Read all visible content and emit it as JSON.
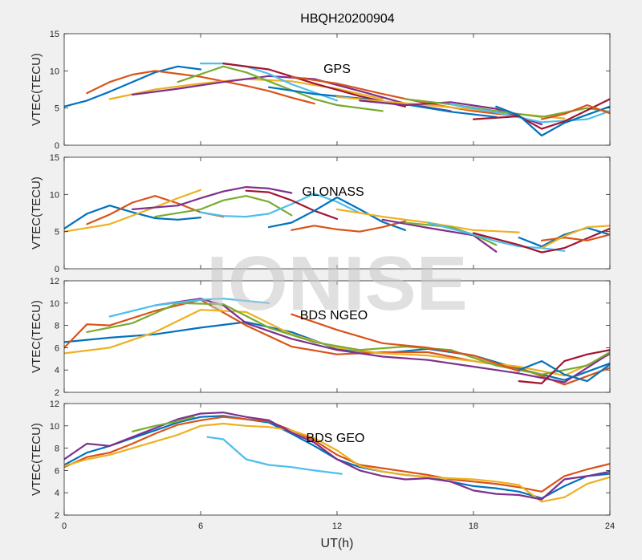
{
  "figure_title": "HBQH20200904",
  "watermark": "IONISE",
  "xlabel": "UT(h)",
  "colors": [
    "#0072BD",
    "#D95319",
    "#EDB120",
    "#7E2F8E",
    "#77AC30",
    "#4DBEEE",
    "#A2142F"
  ],
  "chart_data": [
    {
      "type": "line",
      "title": "GPS",
      "ylabel": "VTEC(TECU)",
      "xlim": [
        0,
        24
      ],
      "ylim": [
        0,
        15
      ],
      "xticks": [
        0,
        6,
        12,
        18,
        24
      ],
      "yticks": [
        0,
        5,
        10,
        15
      ],
      "series": [
        {
          "x": [
            0,
            1,
            2,
            3,
            4,
            5,
            6
          ],
          "y": [
            5.2,
            6.0,
            7.2,
            8.5,
            9.8,
            10.6,
            10.2
          ]
        },
        {
          "x": [
            1,
            2,
            3,
            4,
            5,
            6,
            7,
            8,
            9,
            10,
            11
          ],
          "y": [
            7.0,
            8.5,
            9.5,
            10.0,
            9.6,
            9.2,
            8.6,
            8.0,
            7.3,
            6.4,
            5.6
          ]
        },
        {
          "x": [
            2,
            4,
            6,
            8,
            10,
            12,
            14
          ],
          "y": [
            6.2,
            7.5,
            8.3,
            8.9,
            8.6,
            7.6,
            6.2
          ]
        },
        {
          "x": [
            3,
            5,
            7,
            9,
            11,
            13,
            15,
            17
          ],
          "y": [
            6.8,
            7.6,
            8.5,
            9.3,
            8.9,
            7.3,
            5.6,
            4.6
          ]
        },
        {
          "x": [
            5,
            7,
            8,
            9,
            10,
            11,
            12,
            14
          ],
          "y": [
            8.5,
            10.6,
            9.8,
            8.6,
            7.4,
            6.2,
            5.4,
            4.6
          ]
        },
        {
          "x": [
            6,
            7,
            8,
            9,
            10,
            11,
            12
          ],
          "y": [
            11.0,
            11.0,
            10.6,
            9.6,
            8.2,
            7.1,
            6.0
          ]
        },
        {
          "x": [
            7,
            9,
            11,
            13,
            15
          ],
          "y": [
            11.0,
            10.2,
            8.3,
            6.6,
            5.2
          ]
        },
        {
          "x": [
            9,
            11,
            13,
            15,
            17,
            19
          ],
          "y": [
            7.8,
            6.9,
            6.3,
            5.5,
            4.5,
            3.8
          ]
        },
        {
          "x": [
            10,
            12,
            14,
            16,
            18,
            20
          ],
          "y": [
            9.2,
            8.3,
            6.9,
            5.6,
            4.6,
            3.9
          ]
        },
        {
          "x": [
            12,
            14,
            16,
            18,
            20,
            22
          ],
          "y": [
            6.5,
            5.9,
            5.4,
            4.8,
            4.2,
            3.6
          ]
        },
        {
          "x": [
            13,
            15,
            17,
            19,
            21
          ],
          "y": [
            6.0,
            5.4,
            5.8,
            4.9,
            2.8
          ]
        },
        {
          "x": [
            15,
            17,
            19,
            21,
            23,
            24
          ],
          "y": [
            6.2,
            5.5,
            4.6,
            3.8,
            5.0,
            4.5
          ]
        },
        {
          "x": [
            17,
            19,
            21,
            23,
            24
          ],
          "y": [
            5.5,
            4.4,
            3.1,
            3.5,
            4.6
          ]
        },
        {
          "x": [
            18,
            20,
            21,
            22,
            24
          ],
          "y": [
            3.5,
            3.9,
            2.2,
            3.2,
            6.2
          ]
        },
        {
          "x": [
            19,
            20,
            21,
            22,
            24
          ],
          "y": [
            5.2,
            4.0,
            1.3,
            3.0,
            5.2
          ]
        },
        {
          "x": [
            21,
            22,
            23,
            24
          ],
          "y": [
            3.5,
            4.2,
            5.4,
            4.3
          ]
        }
      ]
    },
    {
      "type": "line",
      "title": "GLONASS",
      "ylabel": "VTEC(TECU)",
      "xlim": [
        0,
        24
      ],
      "ylim": [
        0,
        15
      ],
      "xticks": [
        0,
        6,
        12,
        18,
        24
      ],
      "yticks": [
        0,
        5,
        10,
        15
      ],
      "series": [
        {
          "x": [
            0,
            1,
            2,
            3,
            4,
            5,
            6
          ],
          "y": [
            5.4,
            7.4,
            8.5,
            7.6,
            6.8,
            6.6,
            6.9
          ]
        },
        {
          "x": [
            1,
            2,
            3,
            4,
            5,
            6,
            7
          ],
          "y": [
            6.0,
            7.3,
            8.9,
            9.8,
            8.8,
            7.6,
            7.0
          ]
        },
        {
          "x": [
            0,
            2,
            4,
            5,
            6
          ],
          "y": [
            5.0,
            6.0,
            8.3,
            9.5,
            10.6
          ]
        },
        {
          "x": [
            3,
            5,
            6,
            7,
            8,
            9,
            10
          ],
          "y": [
            8.0,
            8.5,
            9.5,
            10.4,
            11.0,
            10.8,
            10.2
          ]
        },
        {
          "x": [
            4,
            6,
            7,
            8,
            9,
            10
          ],
          "y": [
            7.0,
            8.0,
            9.2,
            9.8,
            9.0,
            7.2
          ]
        },
        {
          "x": [
            6,
            7,
            8,
            9,
            10,
            11,
            12,
            13
          ],
          "y": [
            7.6,
            7.1,
            7.0,
            7.4,
            8.7,
            10.1,
            9.0,
            7.5
          ]
        },
        {
          "x": [
            8,
            9,
            10,
            11,
            12
          ],
          "y": [
            10.5,
            10.3,
            9.2,
            7.8,
            6.7
          ]
        },
        {
          "x": [
            9,
            10,
            11,
            12,
            13,
            14,
            15
          ],
          "y": [
            5.6,
            6.2,
            7.8,
            9.6,
            8.0,
            6.3,
            5.2
          ]
        },
        {
          "x": [
            10,
            11,
            12,
            13,
            14,
            15
          ],
          "y": [
            5.2,
            5.8,
            5.3,
            5.0,
            5.6,
            6.4
          ]
        },
        {
          "x": [
            12,
            14,
            16,
            18,
            20
          ],
          "y": [
            8.0,
            7.0,
            6.2,
            5.2,
            4.9
          ]
        },
        {
          "x": [
            14,
            16,
            18,
            19
          ],
          "y": [
            6.6,
            5.5,
            4.5,
            2.3
          ]
        },
        {
          "x": [
            15,
            17,
            18,
            19
          ],
          "y": [
            6.2,
            5.6,
            4.6,
            3.2
          ]
        },
        {
          "x": [
            16,
            18,
            19,
            20,
            21,
            22
          ],
          "y": [
            6.2,
            4.6,
            3.7,
            3.0,
            2.8,
            2.4
          ]
        },
        {
          "x": [
            18,
            19,
            20,
            21,
            22,
            24
          ],
          "y": [
            4.8,
            4.0,
            3.2,
            2.2,
            2.8,
            5.4
          ]
        },
        {
          "x": [
            20,
            21,
            22,
            23,
            24
          ],
          "y": [
            4.2,
            3.0,
            4.6,
            5.5,
            4.6
          ]
        },
        {
          "x": [
            21,
            22,
            23,
            24
          ],
          "y": [
            3.8,
            4.2,
            3.8,
            4.6
          ]
        },
        {
          "x": [
            21,
            22,
            23,
            24
          ],
          "y": [
            2.8,
            4.4,
            5.6,
            5.8
          ]
        }
      ]
    },
    {
      "type": "line",
      "title": "BDS NGEO",
      "ylabel": "VTEC(TECU)",
      "xlim": [
        0,
        24
      ],
      "ylim": [
        2,
        12
      ],
      "xticks": [
        0,
        6,
        12,
        18,
        24
      ],
      "yticks": [
        2,
        4,
        6,
        8,
        10,
        12
      ],
      "series": [
        {
          "x": [
            0,
            2,
            4,
            6,
            8,
            10,
            12,
            14,
            16,
            18,
            20,
            22,
            24
          ],
          "y": [
            6.5,
            6.9,
            7.2,
            7.8,
            8.3,
            7.4,
            5.9,
            5.5,
            5.9,
            5.3,
            4.1,
            3.1,
            4.6
          ]
        },
        {
          "x": [
            0,
            1,
            2,
            4,
            6,
            8,
            10,
            12,
            14,
            16,
            18,
            20,
            22,
            24
          ],
          "y": [
            6.0,
            8.1,
            8.0,
            9.3,
            10.3,
            8.0,
            6.1,
            5.4,
            5.6,
            5.6,
            4.8,
            4.2,
            2.7,
            4.2
          ]
        },
        {
          "x": [
            0,
            2,
            4,
            6,
            8,
            10,
            12,
            14,
            16,
            18,
            20,
            22,
            24
          ],
          "y": [
            5.5,
            6.0,
            7.4,
            9.4,
            9.2,
            7.2,
            6.0,
            5.5,
            5.3,
            4.8,
            4.3,
            3.5,
            5.4
          ]
        },
        {
          "x": [
            4,
            6,
            7,
            8,
            10,
            12,
            14,
            16,
            18,
            20,
            22,
            24
          ],
          "y": [
            9.8,
            10.4,
            9.8,
            8.2,
            6.8,
            5.8,
            5.2,
            4.9,
            4.3,
            3.7,
            2.9,
            5.5
          ]
        },
        {
          "x": [
            1,
            3,
            5,
            7,
            9,
            11,
            13,
            15,
            17,
            19,
            21,
            23,
            24
          ],
          "y": [
            7.4,
            8.2,
            10.0,
            9.9,
            7.8,
            6.5,
            5.8,
            6.1,
            5.8,
            4.4,
            3.6,
            4.4,
            5.6
          ]
        },
        {
          "x": [
            2,
            4,
            6,
            7,
            8,
            9
          ],
          "y": [
            8.8,
            9.8,
            10.3,
            10.4,
            10.2,
            10.0
          ]
        },
        {
          "x": [
            20,
            21,
            22,
            23,
            24
          ],
          "y": [
            3.0,
            2.8,
            4.8,
            5.4,
            5.8
          ]
        },
        {
          "x": [
            20,
            21,
            22,
            23,
            24
          ],
          "y": [
            4.0,
            4.8,
            3.6,
            3.0,
            4.5
          ]
        },
        {
          "x": [
            10,
            12,
            14,
            16,
            18,
            20
          ],
          "y": [
            9.0,
            7.6,
            6.4,
            6.0,
            5.3,
            3.9
          ]
        }
      ]
    },
    {
      "type": "line",
      "title": "BDS GEO",
      "ylabel": "VTEC(TECU)",
      "xlim": [
        0,
        24
      ],
      "ylim": [
        2,
        12
      ],
      "xticks": [
        0,
        6,
        12,
        18,
        24
      ],
      "yticks": [
        2,
        4,
        6,
        8,
        10,
        12
      ],
      "series": [
        {
          "x": [
            0,
            1,
            2,
            3,
            4,
            5,
            6,
            7,
            8,
            9,
            10,
            11,
            12,
            13,
            14,
            15,
            16,
            17,
            18,
            19,
            20,
            21,
            22,
            23,
            24
          ],
          "y": [
            6.5,
            7.6,
            8.2,
            8.9,
            9.6,
            10.3,
            10.8,
            10.9,
            10.6,
            10.3,
            9.3,
            8.2,
            7.0,
            6.3,
            5.9,
            5.6,
            5.4,
            5.0,
            4.6,
            4.4,
            4.1,
            3.5,
            4.6,
            5.5,
            5.7
          ]
        },
        {
          "x": [
            0,
            1,
            2,
            3,
            4,
            5,
            6,
            7,
            8,
            9,
            10,
            11,
            12,
            13,
            14,
            15,
            16,
            17,
            18,
            19,
            20,
            21,
            22,
            23,
            24
          ],
          "y": [
            6.3,
            7.2,
            7.6,
            8.4,
            9.3,
            10.1,
            10.5,
            10.8,
            10.6,
            10.4,
            9.6,
            8.7,
            7.4,
            6.5,
            6.2,
            5.9,
            5.6,
            5.2,
            5.0,
            4.8,
            4.5,
            4.1,
            5.5,
            6.1,
            6.6
          ]
        },
        {
          "x": [
            0,
            1,
            2,
            3,
            4,
            5,
            6,
            7,
            8,
            9,
            10,
            11,
            12,
            13,
            14,
            15,
            16,
            17,
            18,
            19,
            20,
            21,
            22,
            23,
            24
          ],
          "y": [
            6.4,
            7.0,
            7.4,
            8.0,
            8.6,
            9.2,
            10.0,
            10.2,
            10.0,
            9.9,
            9.6,
            8.9,
            7.8,
            6.4,
            5.9,
            5.6,
            5.4,
            5.3,
            5.2,
            5.0,
            4.7,
            3.2,
            3.6,
            4.8,
            5.4
          ]
        },
        {
          "x": [
            0,
            1,
            2,
            3,
            4,
            5,
            6,
            7,
            8,
            9,
            10,
            11,
            12,
            13,
            14,
            15,
            16,
            17,
            18,
            19,
            20,
            21,
            22,
            23,
            24
          ],
          "y": [
            7.0,
            8.4,
            8.2,
            9.0,
            9.8,
            10.6,
            11.1,
            11.2,
            10.8,
            10.5,
            9.4,
            8.5,
            7.0,
            6.0,
            5.5,
            5.2,
            5.3,
            5.0,
            4.2,
            3.9,
            3.8,
            3.4,
            5.2,
            5.5,
            5.9
          ]
        },
        {
          "x": [
            3,
            4,
            5,
            5.7
          ],
          "y": [
            9.5,
            10.0,
            10.4,
            10.8
          ]
        },
        {
          "x": [
            6.3,
            7,
            8,
            9,
            10,
            11,
            12.2
          ],
          "y": [
            9.0,
            8.8,
            7.0,
            6.5,
            6.3,
            6.0,
            5.7
          ]
        }
      ]
    }
  ]
}
